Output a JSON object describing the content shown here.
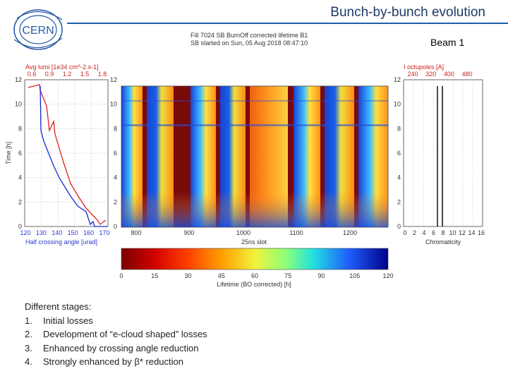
{
  "header": {
    "title": "Bunch-by-bunch evolution",
    "beam": "Beam 1",
    "logo_text": "CERN"
  },
  "figure": {
    "title_line1": "Fill 7024 SB BurnOff corrected lifetime B1",
    "title_line2": "SB started on Sun, 05 Aug 2018 08:47:10",
    "left_panel": {
      "top_axis_label": "Avg lumi [1e34 cm^-2.s-1]",
      "top_ticks": [
        "0.6",
        "0.9",
        "1.2",
        "1.5",
        "1.8"
      ],
      "y_axis_label": "Time [h]",
      "y_ticks": [
        "0",
        "2",
        "4",
        "6",
        "8",
        "10",
        "12"
      ],
      "bottom_ticks": [
        "120",
        "130",
        "140",
        "150",
        "160",
        "170"
      ],
      "bottom_axis_label": "Half crossing angle [urad]"
    },
    "center_panel": {
      "y_ticks": [
        "0",
        "2",
        "4",
        "6",
        "8",
        "10",
        "12"
      ],
      "x_ticks": [
        "800",
        "900",
        "1000",
        "1100",
        "1200"
      ],
      "x_axis_label": "25ns slot",
      "colorbar_ticks": [
        "0",
        "15",
        "30",
        "45",
        "60",
        "75",
        "90",
        "105",
        "120"
      ],
      "colorbar_label": "Lifetime (BO corrected) [h]"
    },
    "right_panel": {
      "top_axis_label": "I octupoles [A]",
      "top_ticks": [
        "240",
        "320",
        "400",
        "480"
      ],
      "y_ticks": [
        "0",
        "2",
        "4",
        "6",
        "8",
        "10",
        "12"
      ],
      "bottom_ticks": [
        "0",
        "2",
        "4",
        "6",
        "8",
        "10",
        "12",
        "14",
        "16"
      ],
      "bottom_axis_label": "Chromaticity"
    },
    "colors": {
      "red_curve": "#dd2222",
      "blue_curve": "#1a2ad0",
      "gap_color": "#7a0a0a"
    }
  },
  "stages": {
    "heading": "Different stages:",
    "items": [
      {
        "num": "1.",
        "text": "Initial losses"
      },
      {
        "num": "2.",
        "text": "Development of “e-cloud shaped” losses"
      },
      {
        "num": "3.",
        "text": "Enhanced by crossing angle reduction"
      },
      {
        "num": "4.",
        "text": "Strongly enhanced by β* reduction"
      }
    ]
  }
}
